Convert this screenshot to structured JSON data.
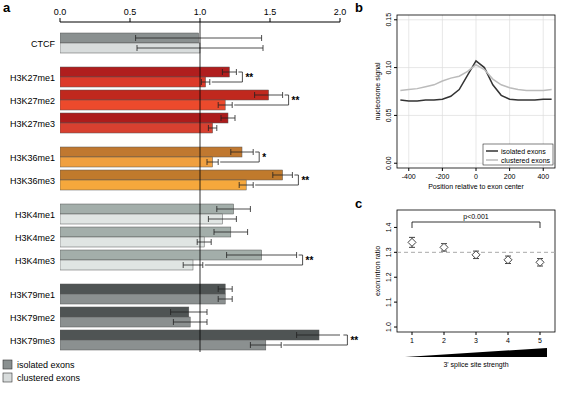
{
  "chart_data": [
    {
      "label": "a",
      "type": "bar",
      "orientation": "horizontal",
      "categories": [
        "CTCF",
        "H3K27me1",
        "H3K27me2",
        "H3K27me3",
        "H3K36me1",
        "H3K36me3",
        "H3K4me1",
        "H3K4me2",
        "H3K4me3",
        "H3K79me1",
        "H3K79me2",
        "H3K79me3"
      ],
      "series": [
        {
          "name": "isolated exons",
          "color": "#8a9090",
          "colors": [
            "#8a9090",
            "#b01e1e",
            "#c0281e",
            "#ac1c1c",
            "#c07830",
            "#c07a2c",
            "#a3aeaa",
            "#a3aeaa",
            "#a3aeaa",
            "#4f5454",
            "#4f5454",
            "#4f5454"
          ],
          "values": [
            0.99,
            1.21,
            1.49,
            1.2,
            1.3,
            1.59,
            1.24,
            1.22,
            1.44,
            1.18,
            0.92,
            1.85
          ],
          "errors": [
            0.45,
            0.05,
            0.1,
            0.05,
            0.08,
            0.07,
            0.12,
            0.12,
            0.25,
            0.05,
            0.13,
            0.16
          ]
        },
        {
          "name": "clustered exons",
          "color": "#d8dcdc",
          "colors": [
            "#d8dcdc",
            "#dc3a2a",
            "#ec4a2c",
            "#d84030",
            "#f0a040",
            "#f6a83c",
            "#e0e5e3",
            "#e0e5e3",
            "#e0e5e3",
            "#8b9090",
            "#8b9090",
            "#8b9090"
          ],
          "values": [
            1.0,
            1.04,
            1.18,
            1.09,
            1.09,
            1.33,
            1.16,
            1.03,
            0.95,
            1.18,
            0.93,
            1.47
          ],
          "errors": [
            0.45,
            0.03,
            0.05,
            0.03,
            0.04,
            0.05,
            0.1,
            0.05,
            0.07,
            0.05,
            0.12,
            0.11
          ]
        }
      ],
      "significance": [
        null,
        "**",
        "**",
        null,
        "*",
        "**",
        null,
        null,
        "**",
        null,
        null,
        "**"
      ],
      "reference": 1,
      "xlim": [
        0,
        2
      ],
      "xticks": [
        {
          "value": 0,
          "label": "0.0"
        },
        0.5,
        {
          "value": 1,
          "label": "1.0"
        },
        1.5,
        {
          "value": 2,
          "label": "2.0"
        }
      ],
      "legend": "bottom-left"
    },
    {
      "label": "b",
      "type": "line",
      "x": [
        -450,
        -400,
        -350,
        -300,
        -250,
        -200,
        -150,
        -100,
        -50,
        0,
        50,
        100,
        150,
        200,
        250,
        300,
        350,
        400,
        450
      ],
      "series": [
        {
          "name": "isolated exons",
          "color": "#333333",
          "values": [
            0.066,
            0.065,
            0.065,
            0.066,
            0.066,
            0.067,
            0.07,
            0.077,
            0.092,
            0.107,
            0.1,
            0.082,
            0.071,
            0.067,
            0.066,
            0.066,
            0.066,
            0.067,
            0.067
          ]
        },
        {
          "name": "clustered exons",
          "color": "#bbbbbb",
          "values": [
            0.076,
            0.077,
            0.078,
            0.08,
            0.082,
            0.086,
            0.089,
            0.091,
            0.096,
            0.103,
            0.098,
            0.088,
            0.082,
            0.079,
            0.077,
            0.076,
            0.076,
            0.076,
            0.077
          ]
        }
      ],
      "x_label": "Position relative to exon center",
      "y_label": "nucleosome signal",
      "xlim": [
        -470,
        470
      ],
      "xticks": [
        -400,
        -200,
        0,
        200,
        400
      ],
      "ylim": [
        -0.005,
        0.155
      ],
      "yticks": [
        {
          "value": 0,
          "label": "0.00"
        },
        0.05,
        {
          "value": 0.1,
          "label": "0.10"
        },
        0.15
      ],
      "grid": true,
      "legend": "bottom-right"
    },
    {
      "label": "c",
      "type": "scatter",
      "categories": [
        "1",
        "2",
        "3",
        "4",
        "5"
      ],
      "values": [
        1.34,
        1.32,
        1.29,
        1.27,
        1.26
      ],
      "errors": [
        0.02,
        0.015,
        0.015,
        0.015,
        0.015
      ],
      "color": "#444444",
      "marker": "diamond",
      "reference": 1.3,
      "annotation": "p<0.001",
      "x_label": "3' splice site strength",
      "y_label": "exon:intron ratio",
      "ylim": [
        0.98,
        1.47
      ],
      "yticks": [
        {
          "value": 1,
          "label": "1.0"
        },
        1.1,
        1.2,
        1.3,
        1.4
      ]
    }
  ]
}
